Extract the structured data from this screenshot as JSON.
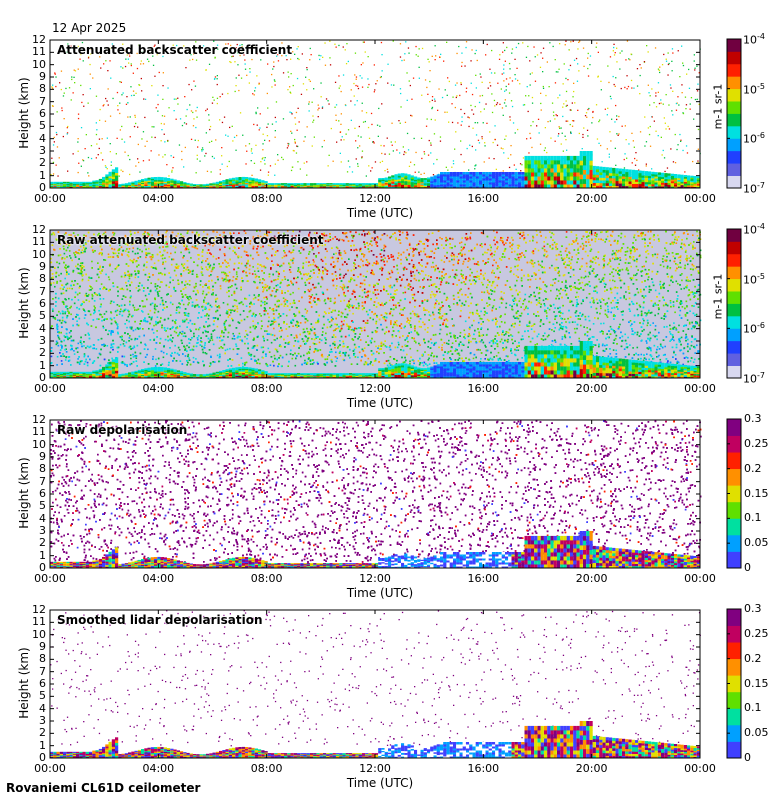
{
  "date": "12 Apr 2025",
  "station": "Rovaniemi CL61D ceilometer",
  "colors": {
    "backscatter_scale": [
      "#d8d8f0",
      "#6060e0",
      "#2040ff",
      "#00a0ff",
      "#00e0e0",
      "#00c040",
      "#60e000",
      "#e0e000",
      "#ff9000",
      "#ff2000",
      "#c00000",
      "#700040"
    ],
    "depol_scale": [
      "#ffffff",
      "#4040ff",
      "#00a0ff",
      "#00e0a0",
      "#60e000",
      "#e0e000",
      "#ff9000",
      "#ff2000",
      "#c00060",
      "#800080"
    ]
  },
  "chart_data": [
    {
      "type": "heatmap",
      "title": "Attenuated backscatter coefficient",
      "xlabel": "Time (UTC)",
      "ylabel": "Height (km)",
      "x_ticks": [
        "00:00",
        "04:00",
        "08:00",
        "12:00",
        "16:00",
        "20:00",
        "00:00"
      ],
      "y_ticks": [
        "0",
        "1",
        "2",
        "3",
        "4",
        "5",
        "6",
        "7",
        "8",
        "9",
        "10",
        "11",
        "12"
      ],
      "ylim": [
        0,
        12
      ],
      "colorbar": {
        "scale": "log",
        "range": [
          1e-07,
          0.0001
        ],
        "unit": "m-1 sr-1",
        "tick_labels": [
          {
            "base": "10",
            "exp": "-4"
          },
          {
            "base": "10",
            "exp": "-5"
          },
          {
            "base": "10",
            "exp": "-6"
          },
          {
            "base": "10",
            "exp": "-7"
          }
        ]
      }
    },
    {
      "type": "heatmap",
      "title": "Raw attenuated backscatter coefficient",
      "xlabel": "Time (UTC)",
      "ylabel": "Height (km)",
      "x_ticks": [
        "00:00",
        "04:00",
        "08:00",
        "12:00",
        "16:00",
        "20:00",
        "00:00"
      ],
      "y_ticks": [
        "0",
        "1",
        "2",
        "3",
        "4",
        "5",
        "6",
        "7",
        "8",
        "9",
        "10",
        "11",
        "12"
      ],
      "ylim": [
        0,
        12
      ],
      "colorbar": {
        "scale": "log",
        "range": [
          1e-07,
          0.0001
        ],
        "unit": "m-1 sr-1",
        "tick_labels": [
          {
            "base": "10",
            "exp": "-4"
          },
          {
            "base": "10",
            "exp": "-5"
          },
          {
            "base": "10",
            "exp": "-6"
          },
          {
            "base": "10",
            "exp": "-7"
          }
        ]
      }
    },
    {
      "type": "heatmap",
      "title": "Raw depolarisation",
      "xlabel": "Time (UTC)",
      "ylabel": "Height (km)",
      "x_ticks": [
        "00:00",
        "04:00",
        "08:00",
        "12:00",
        "16:00",
        "20:00",
        "00:00"
      ],
      "y_ticks": [
        "0",
        "1",
        "2",
        "3",
        "4",
        "5",
        "6",
        "7",
        "8",
        "9",
        "10",
        "11",
        "12"
      ],
      "ylim": [
        0,
        12
      ],
      "colorbar": {
        "scale": "linear",
        "range": [
          0,
          0.3
        ],
        "tick_labels": [
          "0.3",
          "0.25",
          "0.2",
          "0.15",
          "0.1",
          "0.05",
          "0"
        ]
      }
    },
    {
      "type": "heatmap",
      "title": "Smoothed lidar depolarisation",
      "xlabel": "Time (UTC)",
      "ylabel": "Height (km)",
      "x_ticks": [
        "00:00",
        "04:00",
        "08:00",
        "12:00",
        "16:00",
        "20:00",
        "00:00"
      ],
      "y_ticks": [
        "0",
        "1",
        "2",
        "3",
        "4",
        "5",
        "6",
        "7",
        "8",
        "9",
        "10",
        "11",
        "12"
      ],
      "ylim": [
        0,
        12
      ],
      "colorbar": {
        "scale": "linear",
        "range": [
          0,
          0.3
        ],
        "tick_labels": [
          "0.3",
          "0.25",
          "0.2",
          "0.15",
          "0.1",
          "0.05",
          "0"
        ]
      }
    }
  ]
}
